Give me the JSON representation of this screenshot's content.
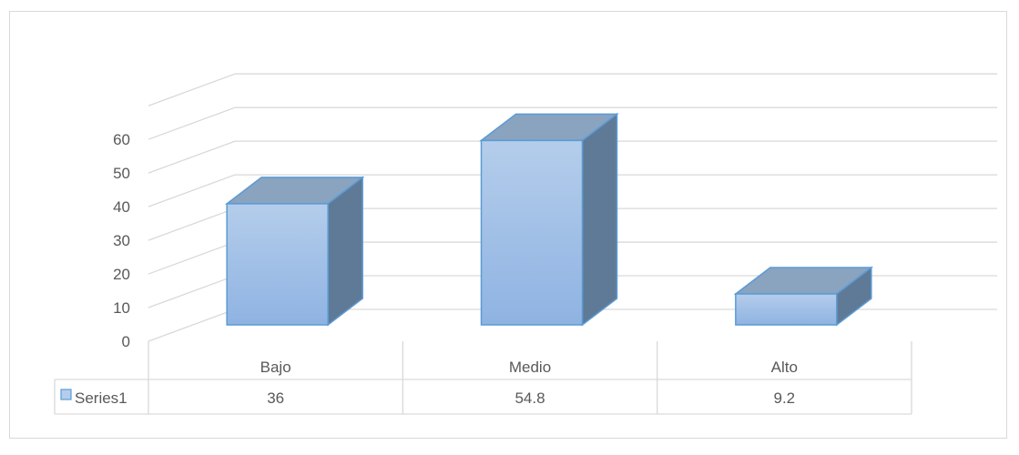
{
  "chart_data": {
    "type": "bar",
    "title": "",
    "xlabel": "",
    "ylabel": "",
    "categories": [
      "Bajo",
      "Medio",
      "Alto"
    ],
    "series": [
      {
        "name": "Series1",
        "values": [
          36,
          54.8,
          9.2
        ],
        "display": [
          "36",
          "54.8",
          "9.2"
        ]
      }
    ],
    "ylim": [
      0,
      60
    ],
    "yticks": [
      "0",
      "10",
      "20",
      "30",
      "40",
      "50",
      "60"
    ],
    "grid": true,
    "legend": "data-table",
    "style": "3d-column",
    "colors": {
      "bar_front_top": "#b4cdeb",
      "bar_front_bottom": "#8fb3e2",
      "bar_top": "#8aa3bf",
      "bar_side": "#5f7a96",
      "bar_stroke": "#5b9bd5",
      "grid": "#d9d9d9",
      "text": "#595959"
    }
  }
}
